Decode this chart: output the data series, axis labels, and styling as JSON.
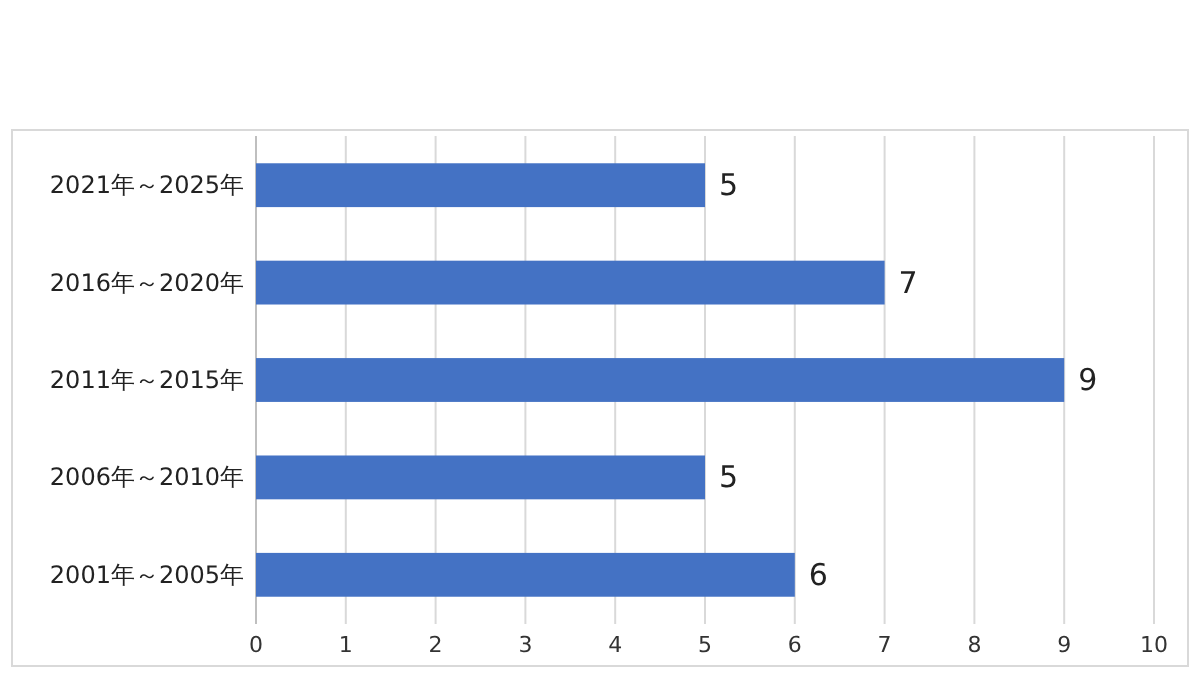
{
  "chart_data": {
    "type": "bar",
    "orientation": "horizontal",
    "categories": [
      "2021年～2025年",
      "2016年～2020年",
      "2011年～2015年",
      "2006年～2010年",
      "2001年～2005年"
    ],
    "values": [
      5,
      7,
      9,
      5,
      6
    ],
    "color": "#4472c4",
    "xlim": [
      0,
      10
    ],
    "xticks": [
      0,
      1,
      2,
      3,
      4,
      5,
      6,
      7,
      8,
      9,
      10
    ],
    "grid": "x",
    "data_labels": true
  }
}
